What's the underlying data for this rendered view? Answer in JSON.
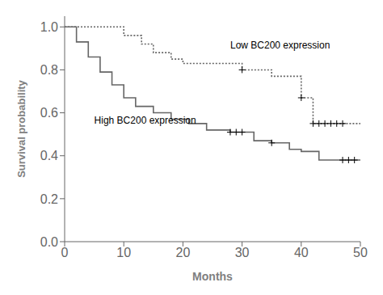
{
  "chart_data": {
    "type": "step",
    "xlabel": "Months",
    "ylabel": "Survival probability",
    "xlim": [
      0,
      50
    ],
    "ylim": [
      0.0,
      1.05
    ],
    "xticks": [
      0,
      10,
      20,
      30,
      40,
      50
    ],
    "yticks": [
      {
        "value": 0,
        "label": "0.0"
      },
      0.2,
      0.4,
      0.6,
      0.8,
      {
        "value": 1,
        "label": "1.0"
      }
    ],
    "grid": false,
    "series": [
      {
        "type": "step",
        "color": "#666666",
        "line_style": "dotted",
        "x": [
          0,
          8,
          10,
          13,
          15,
          18,
          20,
          27,
          30,
          35,
          38,
          40,
          42,
          50
        ],
        "values": [
          1.0,
          1.0,
          0.96,
          0.92,
          0.88,
          0.85,
          0.83,
          0.83,
          0.8,
          0.77,
          0.77,
          0.67,
          0.55,
          0.55
        ]
      },
      {
        "type": "step",
        "color": "#666666",
        "line_style": "solid",
        "x": [
          0,
          2,
          4,
          6,
          8,
          10,
          12,
          15,
          18,
          21,
          24,
          28,
          32,
          35,
          38,
          40,
          43,
          47,
          50
        ],
        "values": [
          1.0,
          0.93,
          0.86,
          0.79,
          0.73,
          0.67,
          0.63,
          0.6,
          0.57,
          0.55,
          0.52,
          0.51,
          0.47,
          0.46,
          0.43,
          0.42,
          0.38,
          0.38,
          0.38
        ]
      },
      {
        "type": "scatter",
        "color": "#000000",
        "marker": "plus",
        "x": [
          30,
          40,
          42,
          43,
          44,
          45,
          46,
          47
        ],
        "values": [
          0.8,
          0.67,
          0.55,
          0.55,
          0.55,
          0.55,
          0.55,
          0.55
        ]
      },
      {
        "type": "scatter",
        "color": "#000000",
        "marker": "plus",
        "x": [
          28,
          29,
          30,
          35,
          47,
          48,
          49
        ],
        "values": [
          0.51,
          0.51,
          0.51,
          0.46,
          0.38,
          0.38,
          0.38
        ]
      }
    ],
    "annotations": [
      {
        "text": "Low BC200 expression",
        "x": 28,
        "y": 0.91
      },
      {
        "text": "High BC200 expression",
        "x": 5,
        "y": 0.56
      }
    ]
  }
}
